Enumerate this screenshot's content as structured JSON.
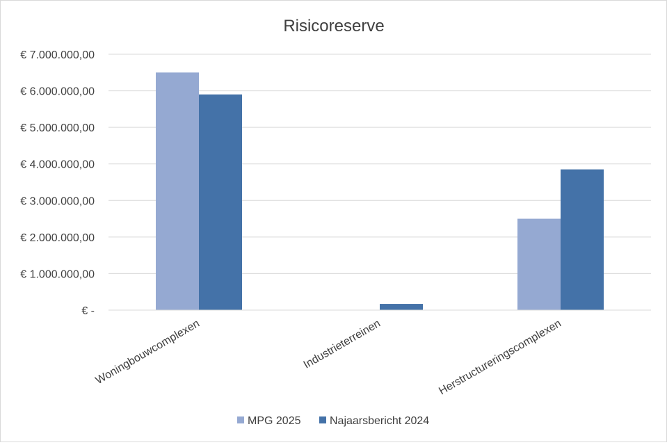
{
  "chart_data": {
    "type": "bar",
    "title": "Risicoreserve",
    "categories": [
      "Woningbouwcomplexen",
      "Industrieterreinen",
      "Herstructureringscomplexen"
    ],
    "series": [
      {
        "name": "MPG 2025",
        "color": "#95a9d2",
        "values": [
          6500000,
          0,
          2500000
        ]
      },
      {
        "name": "Najaarsbericht 2024",
        "color": "#4472a8",
        "values": [
          5900000,
          170000,
          3850000
        ]
      }
    ],
    "ylim": [
      0,
      7000000
    ],
    "yticks": [
      {
        "value": 0,
        "label": "€ -"
      },
      {
        "value": 1000000,
        "label": "€ 1.000.000,00"
      },
      {
        "value": 2000000,
        "label": "€ 2.000.000,00"
      },
      {
        "value": 3000000,
        "label": "€ 3.000.000,00"
      },
      {
        "value": 4000000,
        "label": "€ 4.000.000,00"
      },
      {
        "value": 5000000,
        "label": "€ 5.000.000,00"
      },
      {
        "value": 6000000,
        "label": "€ 6.000.000,00"
      },
      {
        "value": 7000000,
        "label": "€ 7.000.000,00"
      }
    ],
    "grid": true,
    "legend_position": "bottom"
  }
}
